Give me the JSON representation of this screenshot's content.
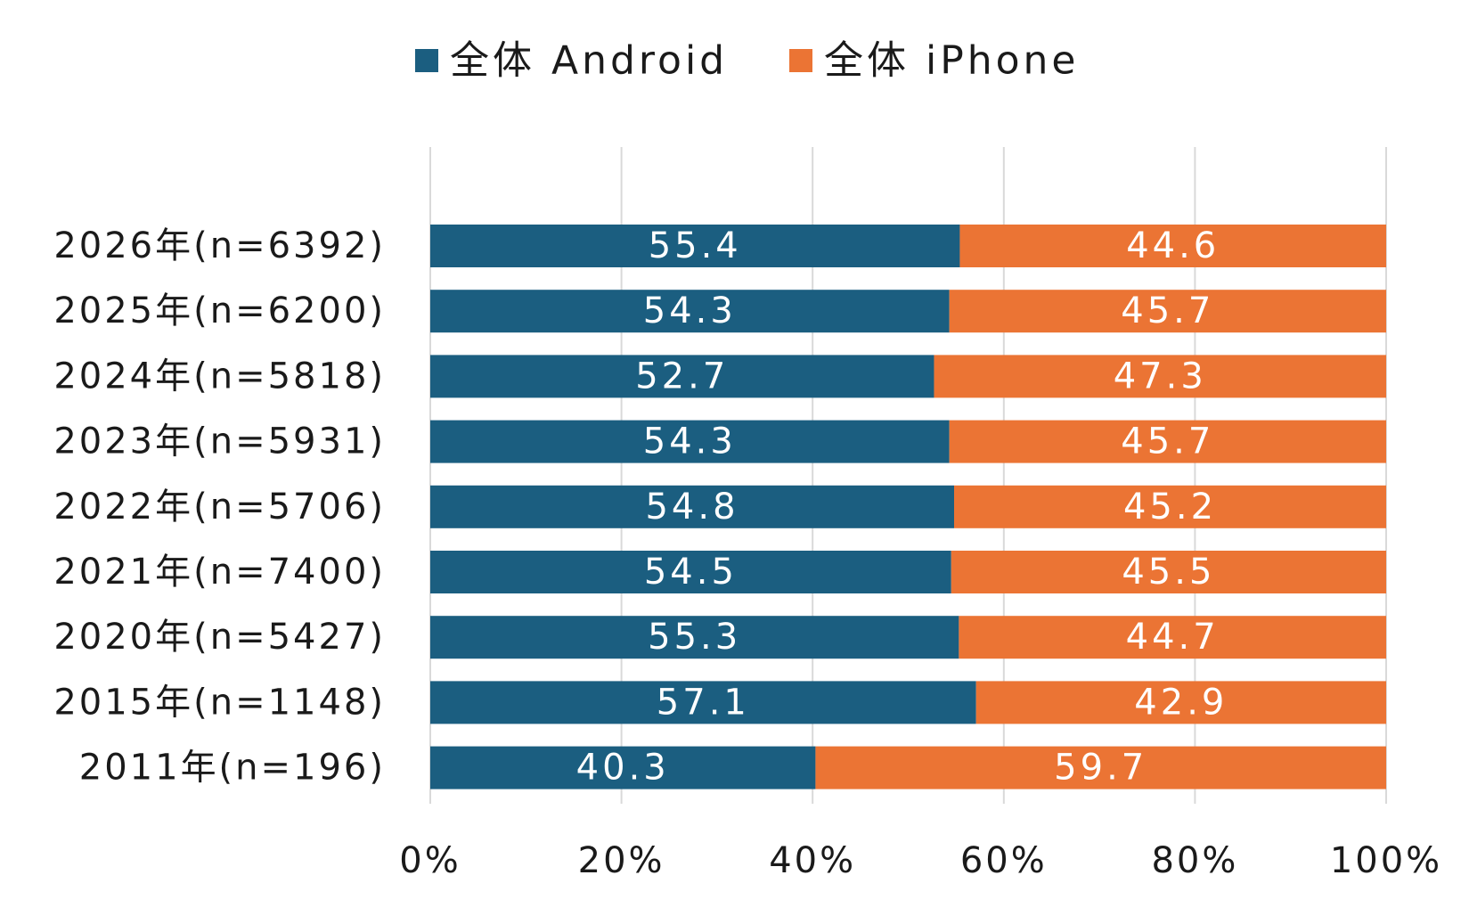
{
  "chart_data": {
    "type": "bar",
    "orientation": "horizontal",
    "stacked": true,
    "normalized_percent": true,
    "categories": [
      "2026年(n=6392)",
      "2025年(n=6200)",
      "2024年(n=5818)",
      "2023年(n=5931)",
      "2022年(n=5706)",
      "2021年(n=7400)",
      "2020年(n=5427)",
      "2015年(n=1148)",
      "2011年(n=196)"
    ],
    "series": [
      {
        "name": "全体 Android",
        "color": "#1b5e80",
        "values": [
          55.4,
          54.3,
          52.7,
          54.3,
          54.8,
          54.5,
          55.3,
          57.1,
          40.3
        ],
        "labels": [
          "55.4",
          "54.3",
          "52.7",
          "54.3",
          "54.8",
          "54.5",
          "55.3",
          "57.1",
          "40.3"
        ]
      },
      {
        "name": "全体 iPhone",
        "color": "#eb7434",
        "values": [
          44.6,
          45.7,
          47.3,
          45.7,
          45.2,
          45.5,
          44.7,
          42.9,
          59.7
        ],
        "labels": [
          "44.6",
          "45.7",
          "47.3",
          "45.7",
          "45.2",
          "45.5",
          "44.7",
          "42.9",
          "59.7"
        ]
      }
    ],
    "x_ticks": [
      "0%",
      "20%",
      "40%",
      "60%",
      "80%",
      "100%"
    ],
    "x_tick_values": [
      0,
      20,
      40,
      60,
      80,
      100
    ],
    "xlim": [
      0,
      100
    ],
    "xlabel": "",
    "ylabel": "",
    "title": "",
    "grid": "vertical",
    "grid_color": "#d9d9d9",
    "legend_position": "top-center"
  }
}
